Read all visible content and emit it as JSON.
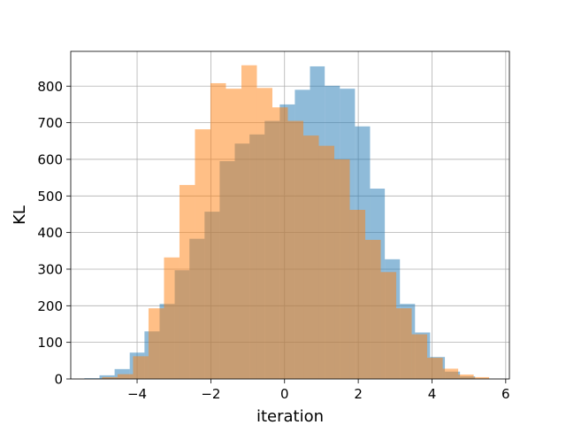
{
  "chart_data": {
    "type": "bar",
    "xlabel": "iteration",
    "ylabel": "KL",
    "xlim": [
      -5.8,
      6.1
    ],
    "ylim": [
      0,
      895
    ],
    "grid": true,
    "xticks": [
      -4,
      -2,
      0,
      2,
      4,
      6
    ],
    "xtick_labels": [
      "−4",
      "−2",
      "0",
      "2",
      "4",
      "6"
    ],
    "yticks": [
      0,
      100,
      200,
      300,
      400,
      500,
      600,
      700,
      800
    ],
    "ytick_labels": [
      "0",
      "100",
      "200",
      "300",
      "400",
      "500",
      "600",
      "700",
      "800"
    ],
    "colors": {
      "series1": "#1f77b4",
      "series2": "#ff7f0e",
      "alpha": 0.5
    },
    "series": [
      {
        "bins": [
          [
            -5.43,
            -5.02,
            2
          ],
          [
            -5.02,
            -4.61,
            10
          ],
          [
            -4.61,
            -4.2,
            27
          ],
          [
            -4.2,
            -3.8,
            72
          ],
          [
            -3.8,
            -3.39,
            130
          ],
          [
            -3.39,
            -2.98,
            205
          ],
          [
            -2.98,
            -2.58,
            297
          ],
          [
            -2.58,
            -2.17,
            383
          ],
          [
            -2.17,
            -1.76,
            457
          ],
          [
            -1.76,
            -1.35,
            595
          ],
          [
            -1.35,
            -0.95,
            643
          ],
          [
            -0.95,
            -0.54,
            668
          ],
          [
            -0.54,
            -0.13,
            705
          ],
          [
            -0.13,
            0.28,
            750
          ],
          [
            0.28,
            0.69,
            790
          ],
          [
            0.69,
            1.09,
            854
          ],
          [
            1.09,
            1.5,
            801
          ],
          [
            1.5,
            1.91,
            793
          ],
          [
            1.91,
            2.32,
            690
          ],
          [
            2.32,
            2.72,
            520
          ],
          [
            2.72,
            3.13,
            327
          ],
          [
            3.13,
            3.54,
            205
          ],
          [
            3.54,
            3.95,
            127
          ],
          [
            3.95,
            4.35,
            60
          ],
          [
            4.35,
            4.76,
            20
          ],
          [
            4.76,
            5.17,
            7
          ],
          [
            5.17,
            5.57,
            1
          ]
        ]
      },
      {
        "bins": [
          [
            -4.95,
            -4.53,
            5
          ],
          [
            -4.53,
            -4.11,
            13
          ],
          [
            -4.11,
            -3.69,
            62
          ],
          [
            -3.69,
            -3.27,
            193
          ],
          [
            -3.27,
            -2.85,
            332
          ],
          [
            -2.85,
            -2.43,
            530
          ],
          [
            -2.43,
            -2.01,
            682
          ],
          [
            -2.01,
            -1.59,
            808
          ],
          [
            -1.59,
            -1.17,
            793
          ],
          [
            -1.17,
            -0.75,
            857
          ],
          [
            -0.75,
            -0.33,
            795
          ],
          [
            -0.33,
            0.09,
            742
          ],
          [
            0.09,
            0.51,
            705
          ],
          [
            0.51,
            0.93,
            665
          ],
          [
            0.93,
            1.35,
            637
          ],
          [
            1.35,
            1.77,
            600
          ],
          [
            1.77,
            2.19,
            462
          ],
          [
            2.19,
            2.61,
            380
          ],
          [
            2.61,
            3.03,
            292
          ],
          [
            3.03,
            3.45,
            193
          ],
          [
            3.45,
            3.87,
            122
          ],
          [
            3.87,
            4.29,
            58
          ],
          [
            4.29,
            4.71,
            28
          ],
          [
            4.71,
            5.13,
            12
          ],
          [
            5.13,
            5.55,
            5
          ]
        ]
      }
    ]
  }
}
